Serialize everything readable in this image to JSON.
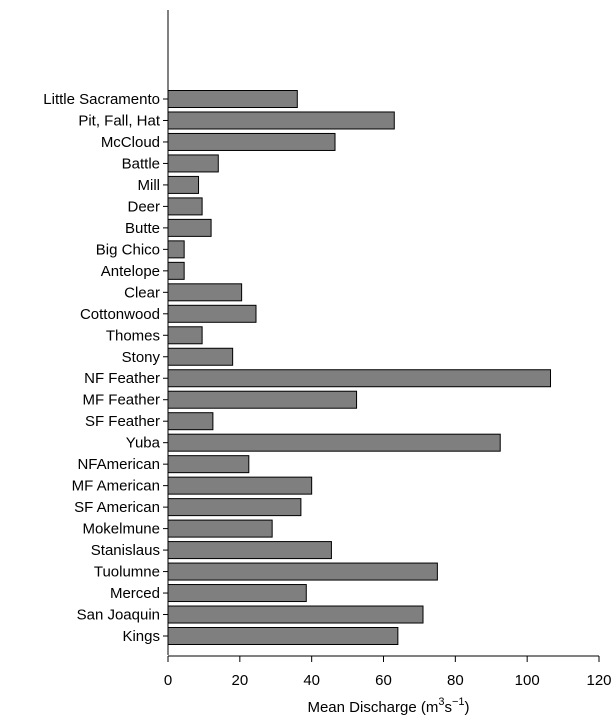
{
  "chart_data": {
    "type": "bar",
    "orientation": "horizontal",
    "categories": [
      "Little Sacramento",
      "Pit, Fall, Hat",
      "McCloud",
      "Battle",
      "Mill",
      "Deer",
      "Butte",
      "Big Chico",
      "Antelope",
      "Clear",
      "Cottonwood",
      "Thomes",
      "Stony",
      "NF Feather",
      "MF Feather",
      "SF Feather",
      "Yuba",
      "NFAmerican",
      "MF American",
      "SF American",
      "Mokelmune",
      "Stanislaus",
      "Tuolumne",
      "Merced",
      "San Joaquin",
      "Kings"
    ],
    "values": [
      36,
      63,
      46.5,
      14,
      8.5,
      9.5,
      12,
      4.5,
      4.5,
      20.5,
      24.5,
      9.5,
      18,
      106.5,
      52.5,
      12.5,
      92.5,
      22.5,
      40,
      37,
      29,
      45.5,
      75,
      38.5,
      71,
      64
    ],
    "xlabel": "Mean Discharge (m3s−1)",
    "xlabel_parts": {
      "prefix": "Mean Discharge (m",
      "sup1": "3",
      "mid": "s",
      "sup2": "−1",
      "suffix": ")"
    },
    "ylabel": "",
    "xlim": [
      0,
      120
    ],
    "xticks": [
      0,
      20,
      40,
      60,
      80,
      100,
      120
    ],
    "grid": false,
    "bar_color": "#7f7f7f"
  }
}
